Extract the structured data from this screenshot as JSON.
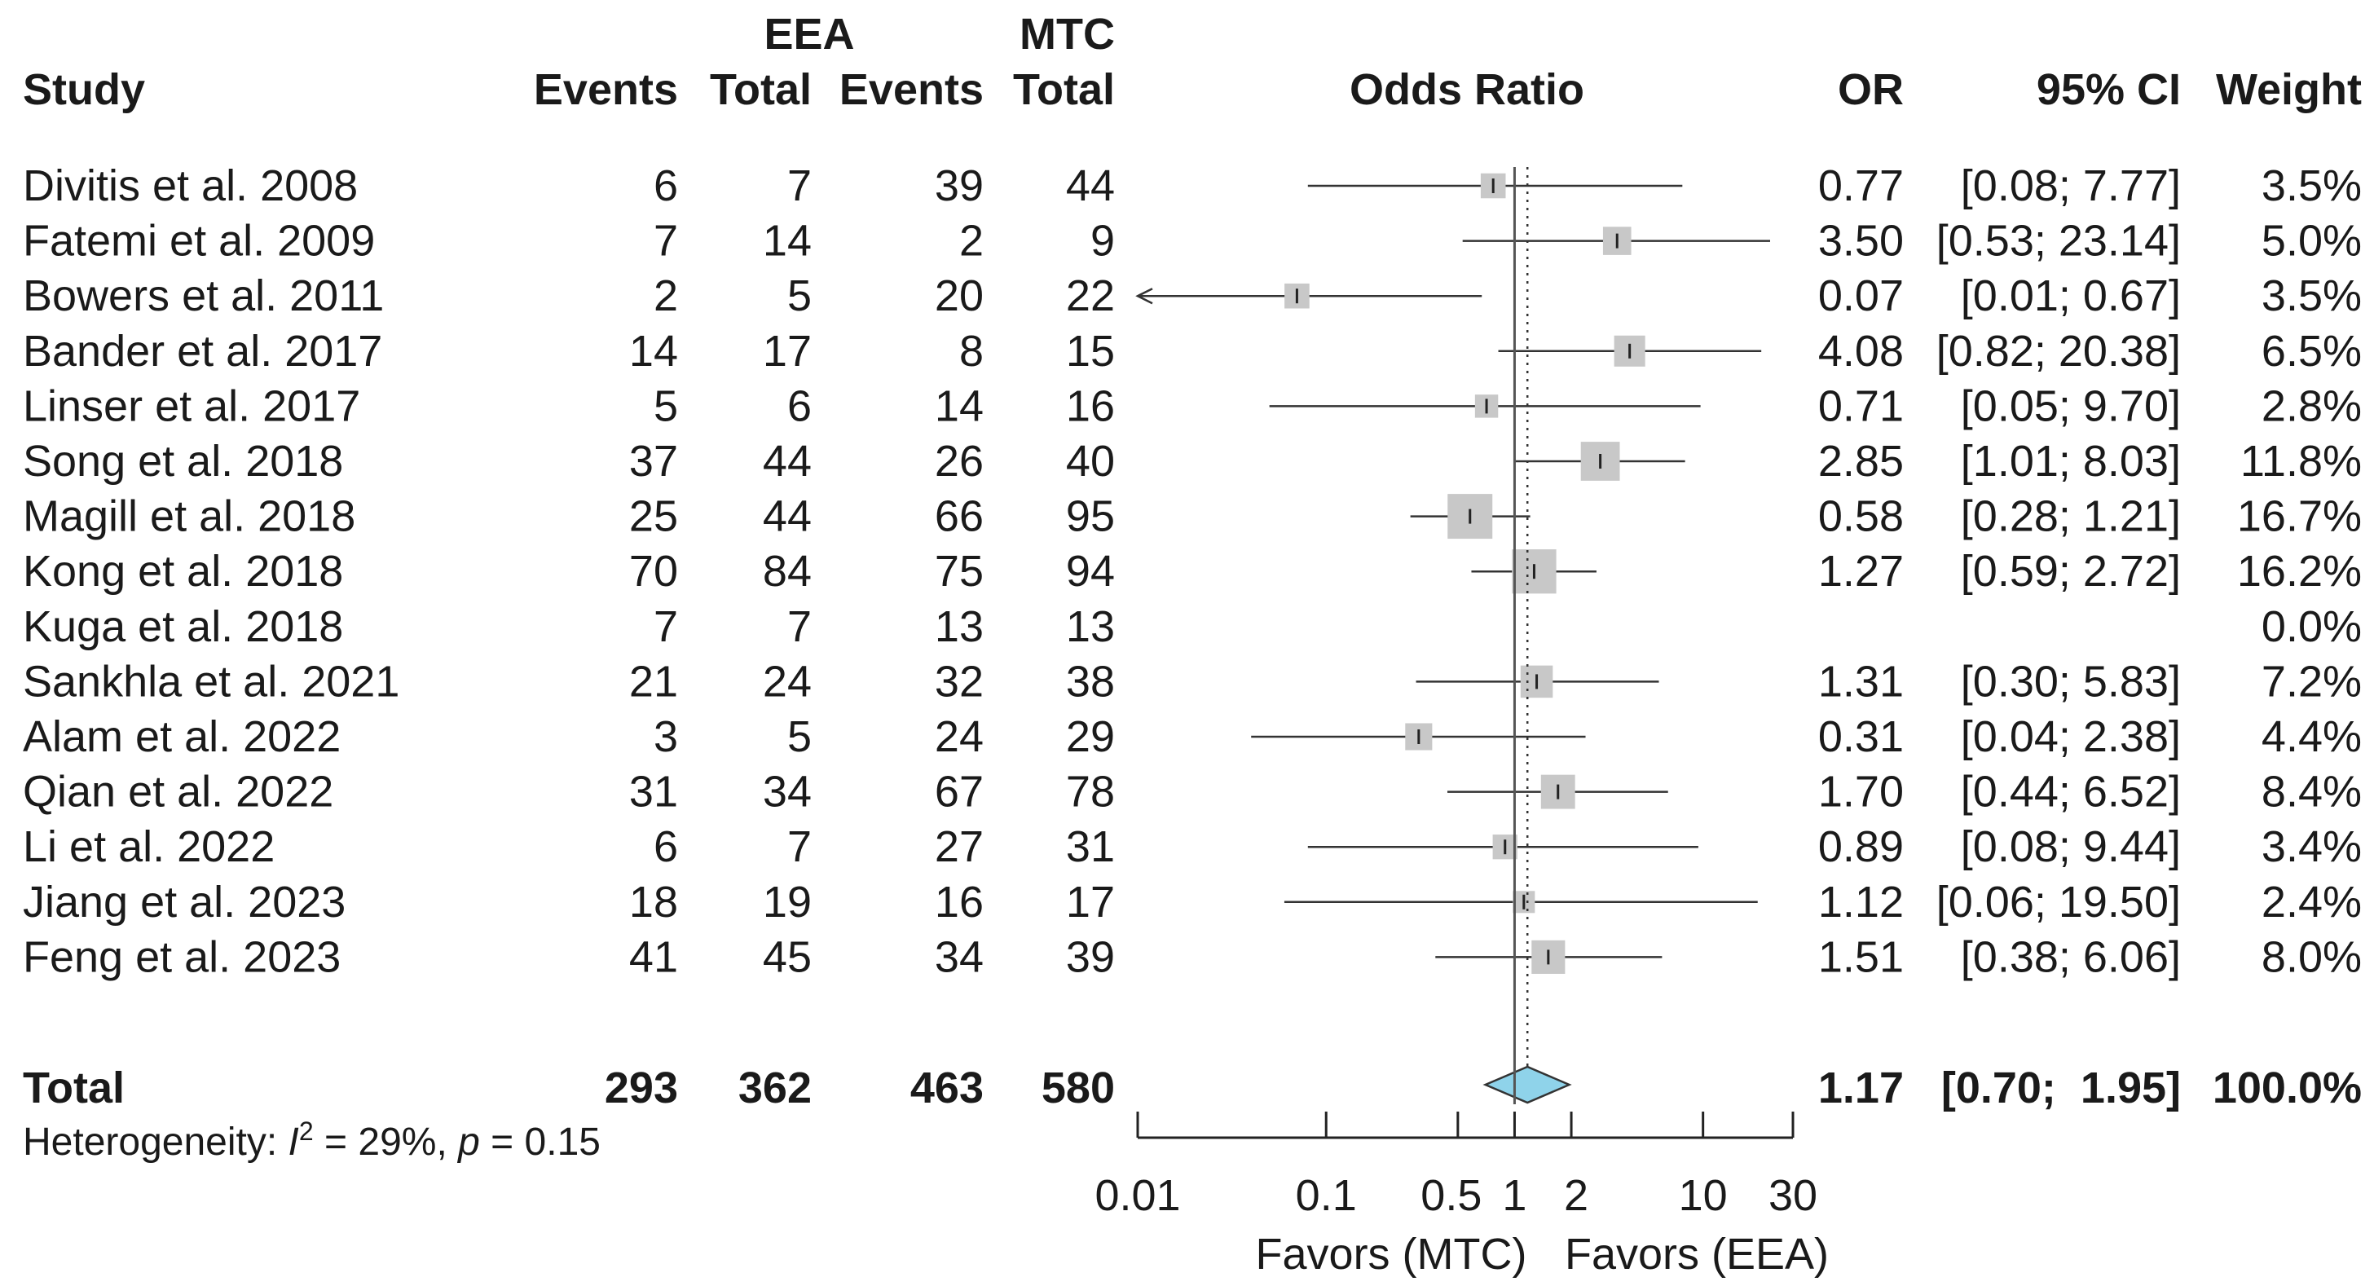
{
  "chart_data": {
    "type": "forest",
    "headers": {
      "study": "Study",
      "eea_group": "EEA",
      "mtc_group": "MTC",
      "events": "Events",
      "total": "Total",
      "plot": "Odds Ratio",
      "or": "OR",
      "ci": "95% CI",
      "weight": "Weight"
    },
    "studies": [
      {
        "study": "Divitis et al. 2008",
        "eea_events": "6",
        "eea_total": "7",
        "mtc_events": "39",
        "mtc_total": "44",
        "or": 0.77,
        "lo": 0.08,
        "hi": 7.77,
        "w": 3.5,
        "or_text": "0.77",
        "ci_text": "[0.08;  7.77]",
        "weight_text": "3.5%"
      },
      {
        "study": "Fatemi et al. 2009",
        "eea_events": "7",
        "eea_total": "14",
        "mtc_events": "2",
        "mtc_total": "9",
        "or": 3.5,
        "lo": 0.53,
        "hi": 23.14,
        "w": 5.0,
        "or_text": "3.50",
        "ci_text": "[0.53; 23.14]",
        "weight_text": "5.0%"
      },
      {
        "study": "Bowers et al. 2011",
        "eea_events": "2",
        "eea_total": "5",
        "mtc_events": "20",
        "mtc_total": "22",
        "or": 0.07,
        "lo": 0.01,
        "hi": 0.67,
        "w": 3.5,
        "or_text": "0.07",
        "ci_text": "[0.01;  0.67]",
        "weight_text": "3.5%"
      },
      {
        "study": "Bander et al. 2017",
        "eea_events": "14",
        "eea_total": "17",
        "mtc_events": "8",
        "mtc_total": "15",
        "or": 4.08,
        "lo": 0.82,
        "hi": 20.38,
        "w": 6.5,
        "or_text": "4.08",
        "ci_text": "[0.82; 20.38]",
        "weight_text": "6.5%"
      },
      {
        "study": "Linser et al. 2017",
        "eea_events": "5",
        "eea_total": "6",
        "mtc_events": "14",
        "mtc_total": "16",
        "or": 0.71,
        "lo": 0.05,
        "hi": 9.7,
        "w": 2.8,
        "or_text": "0.71",
        "ci_text": "[0.05;  9.70]",
        "weight_text": "2.8%"
      },
      {
        "study": "Song et al. 2018",
        "eea_events": "37",
        "eea_total": "44",
        "mtc_events": "26",
        "mtc_total": "40",
        "or": 2.85,
        "lo": 1.01,
        "hi": 8.03,
        "w": 11.8,
        "or_text": "2.85",
        "ci_text": "[1.01;  8.03]",
        "weight_text": "11.8%"
      },
      {
        "study": "Magill et al. 2018",
        "eea_events": "25",
        "eea_total": "44",
        "mtc_events": "66",
        "mtc_total": "95",
        "or": 0.58,
        "lo": 0.28,
        "hi": 1.21,
        "w": 16.7,
        "or_text": "0.58",
        "ci_text": "[0.28;  1.21]",
        "weight_text": "16.7%"
      },
      {
        "study": "Kong et al. 2018",
        "eea_events": "70",
        "eea_total": "84",
        "mtc_events": "75",
        "mtc_total": "94",
        "or": 1.27,
        "lo": 0.59,
        "hi": 2.72,
        "w": 16.2,
        "or_text": "1.27",
        "ci_text": "[0.59;  2.72]",
        "weight_text": "16.2%"
      },
      {
        "study": "Kuga et al. 2018",
        "eea_events": "7",
        "eea_total": "7",
        "mtc_events": "13",
        "mtc_total": "13",
        "or": null,
        "lo": null,
        "hi": null,
        "w": 0.0,
        "or_text": "",
        "ci_text": "",
        "weight_text": "0.0%"
      },
      {
        "study": "Sankhla et al. 2021",
        "eea_events": "21",
        "eea_total": "24",
        "mtc_events": "32",
        "mtc_total": "38",
        "or": 1.31,
        "lo": 0.3,
        "hi": 5.83,
        "w": 7.2,
        "or_text": "1.31",
        "ci_text": "[0.30;  5.83]",
        "weight_text": "7.2%"
      },
      {
        "study": "Alam et al. 2022",
        "eea_events": "3",
        "eea_total": "5",
        "mtc_events": "24",
        "mtc_total": "29",
        "or": 0.31,
        "lo": 0.04,
        "hi": 2.38,
        "w": 4.4,
        "or_text": "0.31",
        "ci_text": "[0.04;  2.38]",
        "weight_text": "4.4%"
      },
      {
        "study": "Qian et al. 2022",
        "eea_events": "31",
        "eea_total": "34",
        "mtc_events": "67",
        "mtc_total": "78",
        "or": 1.7,
        "lo": 0.44,
        "hi": 6.52,
        "w": 8.4,
        "or_text": "1.70",
        "ci_text": "[0.44;  6.52]",
        "weight_text": "8.4%"
      },
      {
        "study": "Li et al. 2022",
        "eea_events": "6",
        "eea_total": "7",
        "mtc_events": "27",
        "mtc_total": "31",
        "or": 0.89,
        "lo": 0.08,
        "hi": 9.44,
        "w": 3.4,
        "or_text": "0.89",
        "ci_text": "[0.08;  9.44]",
        "weight_text": "3.4%"
      },
      {
        "study": "Jiang et al. 2023",
        "eea_events": "18",
        "eea_total": "19",
        "mtc_events": "16",
        "mtc_total": "17",
        "or": 1.12,
        "lo": 0.06,
        "hi": 19.5,
        "w": 2.4,
        "or_text": "1.12",
        "ci_text": "[0.06; 19.50]",
        "weight_text": "2.4%"
      },
      {
        "study": "Feng et al. 2023",
        "eea_events": "41",
        "eea_total": "45",
        "mtc_events": "34",
        "mtc_total": "39",
        "or": 1.51,
        "lo": 0.38,
        "hi": 6.06,
        "w": 8.0,
        "or_text": "1.51",
        "ci_text": "[0.38;  6.06]",
        "weight_text": "8.0%"
      }
    ],
    "total": {
      "label": "Total",
      "eea_events": "293",
      "eea_total": "362",
      "mtc_events": "463",
      "mtc_total": "580",
      "or": 1.17,
      "lo": 0.7,
      "hi": 1.95,
      "or_text": "1.17",
      "ci_text": "[0.70;  1.95]",
      "weight_text": "100.0%"
    },
    "heterogeneity": {
      "prefix": "Heterogeneity: ",
      "stat": "I",
      "sup": "2",
      "middle": " = 29%, ",
      "p": "p",
      "tail": " = 0.15"
    },
    "axis": {
      "scale": "log",
      "xlim": [
        0.01,
        30
      ],
      "ticks": [
        0.01,
        0.1,
        0.5,
        1,
        2,
        10,
        30
      ],
      "tick_labels": [
        "0.01",
        "0.1",
        "0.5",
        "1",
        "2",
        "10",
        "30"
      ],
      "reference": 1
    },
    "favors_left": "Favors (MTC)",
    "favors_right": "Favors (EEA)",
    "colors": {
      "box": "#c8c8c8",
      "diamond": "#8fd3ea",
      "line": "#1a1a1a"
    }
  }
}
